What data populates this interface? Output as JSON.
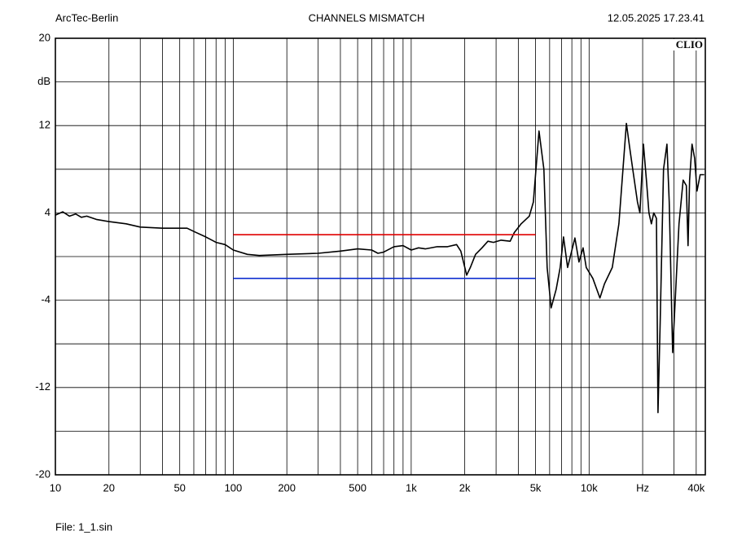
{
  "chart_data": {
    "type": "line",
    "title": "CHANNELS MISMATCH",
    "header_left": "ArcTec-Berlin",
    "header_right": "12.05.2025 17.23.41",
    "brand": "CLIO",
    "footer": "File: 1_1.sin",
    "xscale": "log",
    "xlim": [
      10,
      45000
    ],
    "ylim": [
      -20,
      20
    ],
    "xticks": [
      10,
      20,
      50,
      100,
      200,
      500,
      {
        "value": 1000,
        "label": "1k"
      },
      {
        "value": 2000,
        "label": "2k"
      },
      {
        "value": 5000,
        "label": "5k"
      },
      {
        "value": 10000,
        "label": "10k"
      },
      {
        "value": 20000,
        "label": "Hz"
      },
      {
        "value": 40000,
        "label": "40k"
      }
    ],
    "yticks": [
      20,
      {
        "value": 16,
        "label": "dB"
      },
      12,
      4,
      -4,
      -12,
      -20
    ],
    "xgrid": [
      10,
      20,
      30,
      40,
      50,
      60,
      70,
      80,
      90,
      100,
      200,
      300,
      400,
      500,
      600,
      700,
      800,
      900,
      1000,
      2000,
      3000,
      4000,
      5000,
      6000,
      7000,
      8000,
      9000,
      10000,
      20000,
      30000,
      40000
    ],
    "ygrid": [
      20,
      16,
      12,
      8,
      4,
      0,
      -4,
      -8,
      -12,
      -16,
      -20
    ],
    "series": [
      {
        "color": "#000000",
        "x": [
          10,
          11,
          12,
          13,
          14,
          15,
          17,
          20,
          25,
          30,
          40,
          55,
          60,
          70,
          80,
          90,
          100,
          120,
          140,
          200,
          300,
          400,
          500,
          600,
          650,
          700,
          800,
          900,
          1000,
          1100,
          1200,
          1400,
          1600,
          1800,
          1900,
          2050,
          2150,
          2300,
          2500,
          2700,
          2900,
          3200,
          3600,
          3800,
          4150,
          4610,
          4860,
          5230,
          5570,
          5810,
          6120,
          6530,
          6880,
          7180,
          7570,
          7980,
          8320,
          8770,
          9250,
          9640,
          10500,
          11500,
          12200,
          13500,
          14700,
          15500,
          16200,
          16900,
          17600,
          18700,
          19300,
          20200,
          21000,
          21700,
          22400,
          23100,
          23900,
          24400,
          25100,
          26200,
          27400,
          28200,
          29500,
          30700,
          32000,
          33800,
          35200,
          36000,
          36700,
          37900,
          39200,
          40400,
          42100,
          44400
        ],
        "values": [
          3.8,
          4.1,
          3.7,
          3.9,
          3.6,
          3.7,
          3.4,
          3.2,
          3.0,
          2.7,
          2.6,
          2.6,
          2.3,
          1.8,
          1.3,
          1.1,
          0.6,
          0.2,
          0.1,
          0.2,
          0.3,
          0.5,
          0.7,
          0.6,
          0.3,
          0.4,
          0.9,
          1.0,
          0.6,
          0.8,
          0.7,
          0.9,
          0.9,
          1.1,
          0.5,
          -1.7,
          -1.0,
          0.2,
          0.8,
          1.4,
          1.3,
          1.5,
          1.4,
          2.2,
          3.0,
          3.7,
          5.0,
          11.5,
          8.0,
          -1.0,
          -4.7,
          -3.0,
          -1.0,
          1.8,
          -1.0,
          0.5,
          1.7,
          -0.5,
          0.8,
          -1.0,
          -2.0,
          -3.8,
          -2.5,
          -1.0,
          3.0,
          8.0,
          12.2,
          10.0,
          8.0,
          5.0,
          4.0,
          10.3,
          7.0,
          4.0,
          3.0,
          4.0,
          3.5,
          -14.3,
          -6.0,
          8.0,
          10.3,
          5.0,
          -8.8,
          -3.0,
          3.0,
          7.0,
          6.5,
          1.0,
          7.0,
          10.3,
          9.0,
          6.0,
          7.5,
          7.5
        ]
      },
      {
        "color": "#e00000",
        "x": [
          100,
          5000
        ],
        "values": [
          2,
          2
        ]
      },
      {
        "color": "#1030d0",
        "x": [
          100,
          5000
        ],
        "values": [
          -2,
          -2
        ]
      }
    ]
  }
}
